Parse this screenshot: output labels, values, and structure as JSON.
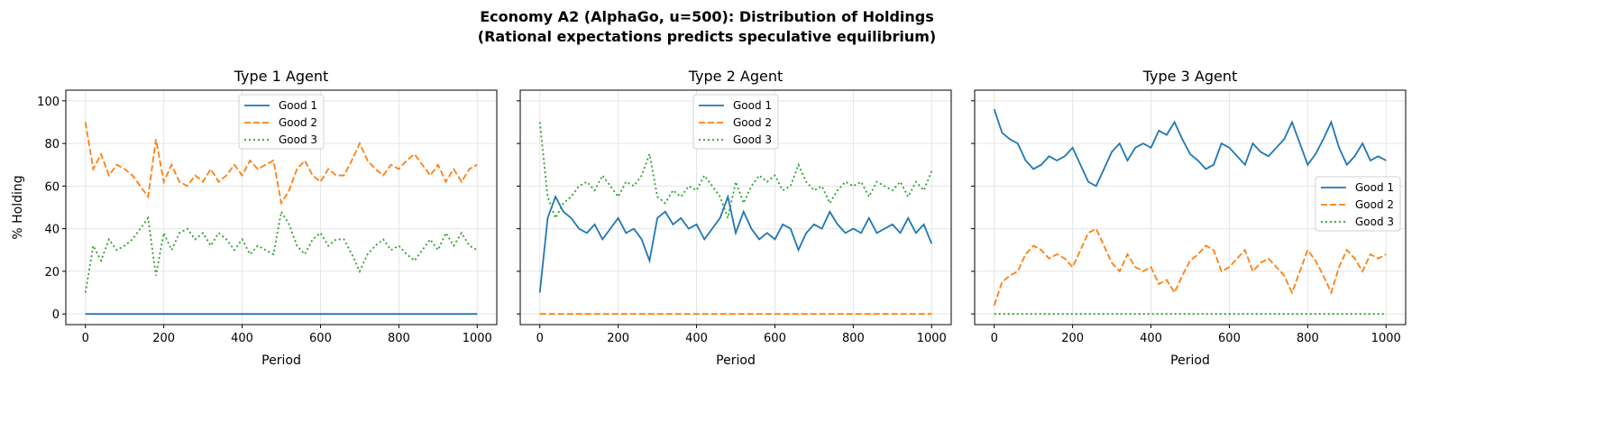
{
  "figure": {
    "title_line1": "Economy A2 (AlphaGo, u=500): Distribution of Holdings",
    "title_line2": "(Rational expectations predicts speculative equilibrium)"
  },
  "colors": {
    "Good 1": "#1f77b4",
    "Good 2": "#ff7f0e",
    "Good 3": "#2ca02c"
  },
  "chart_data": [
    {
      "type": "line",
      "title": "Type 1 Agent",
      "xlabel": "Period",
      "ylabel": "% Holding",
      "xlim": [
        -50,
        1050
      ],
      "ylim": [
        -5,
        105
      ],
      "xticks": [
        0,
        200,
        400,
        600,
        800,
        1000
      ],
      "yticks": [
        0,
        20,
        40,
        60,
        80,
        100
      ],
      "grid": true,
      "legend": "upper center",
      "x": [
        0,
        20,
        40,
        60,
        80,
        100,
        120,
        140,
        160,
        180,
        200,
        220,
        240,
        260,
        280,
        300,
        320,
        340,
        360,
        380,
        400,
        420,
        440,
        460,
        480,
        500,
        520,
        540,
        560,
        580,
        600,
        620,
        640,
        660,
        680,
        700,
        720,
        740,
        760,
        780,
        800,
        820,
        840,
        860,
        880,
        900,
        920,
        940,
        960,
        980,
        1000
      ],
      "series": [
        {
          "name": "Good 1",
          "style": "solid",
          "values": [
            0,
            0,
            0,
            0,
            0,
            0,
            0,
            0,
            0,
            0,
            0,
            0,
            0,
            0,
            0,
            0,
            0,
            0,
            0,
            0,
            0,
            0,
            0,
            0,
            0,
            0,
            0,
            0,
            0,
            0,
            0,
            0,
            0,
            0,
            0,
            0,
            0,
            0,
            0,
            0,
            0,
            0,
            0,
            0,
            0,
            0,
            0,
            0,
            0,
            0,
            0
          ]
        },
        {
          "name": "Good 2",
          "style": "dashed",
          "values": [
            90,
            68,
            75,
            65,
            70,
            68,
            65,
            60,
            55,
            82,
            62,
            70,
            62,
            60,
            65,
            62,
            68,
            62,
            65,
            70,
            65,
            72,
            68,
            70,
            72,
            52,
            58,
            68,
            72,
            65,
            62,
            68,
            65,
            65,
            72,
            80,
            72,
            68,
            65,
            70,
            68,
            72,
            75,
            70,
            65,
            70,
            62,
            68,
            62,
            68,
            70
          ]
        },
        {
          "name": "Good 3",
          "style": "dotted",
          "values": [
            10,
            32,
            25,
            35,
            30,
            32,
            35,
            40,
            45,
            18,
            38,
            30,
            38,
            40,
            35,
            38,
            32,
            38,
            35,
            30,
            35,
            28,
            32,
            30,
            28,
            48,
            42,
            32,
            28,
            35,
            38,
            32,
            35,
            35,
            28,
            20,
            28,
            32,
            35,
            30,
            32,
            28,
            25,
            30,
            35,
            30,
            38,
            32,
            38,
            32,
            30
          ]
        }
      ]
    },
    {
      "type": "line",
      "title": "Type 2 Agent",
      "xlabel": "Period",
      "xlim": [
        -50,
        1050
      ],
      "ylim": [
        -5,
        105
      ],
      "xticks": [
        0,
        200,
        400,
        600,
        800,
        1000
      ],
      "grid": true,
      "legend": "upper center",
      "x": [
        0,
        20,
        40,
        60,
        80,
        100,
        120,
        140,
        160,
        180,
        200,
        220,
        240,
        260,
        280,
        300,
        320,
        340,
        360,
        380,
        400,
        420,
        440,
        460,
        480,
        500,
        520,
        540,
        560,
        580,
        600,
        620,
        640,
        660,
        680,
        700,
        720,
        740,
        760,
        780,
        800,
        820,
        840,
        860,
        880,
        900,
        920,
        940,
        960,
        980,
        1000
      ],
      "series": [
        {
          "name": "Good 1",
          "style": "solid",
          "values": [
            10,
            45,
            55,
            48,
            45,
            40,
            38,
            42,
            35,
            40,
            45,
            38,
            40,
            35,
            25,
            45,
            48,
            42,
            45,
            40,
            42,
            35,
            40,
            45,
            55,
            38,
            48,
            40,
            35,
            38,
            35,
            42,
            40,
            30,
            38,
            42,
            40,
            48,
            42,
            38,
            40,
            38,
            45,
            38,
            40,
            42,
            38,
            45,
            38,
            42,
            33
          ]
        },
        {
          "name": "Good 2",
          "style": "dashed",
          "values": [
            0,
            0,
            0,
            0,
            0,
            0,
            0,
            0,
            0,
            0,
            0,
            0,
            0,
            0,
            0,
            0,
            0,
            0,
            0,
            0,
            0,
            0,
            0,
            0,
            0,
            0,
            0,
            0,
            0,
            0,
            0,
            0,
            0,
            0,
            0,
            0,
            0,
            0,
            0,
            0,
            0,
            0,
            0,
            0,
            0,
            0,
            0,
            0,
            0,
            0,
            0
          ]
        },
        {
          "name": "Good 3",
          "style": "dotted",
          "values": [
            90,
            55,
            45,
            52,
            55,
            60,
            62,
            58,
            65,
            60,
            55,
            62,
            60,
            65,
            75,
            55,
            52,
            58,
            55,
            60,
            58,
            65,
            60,
            55,
            45,
            62,
            52,
            60,
            65,
            62,
            65,
            58,
            60,
            70,
            62,
            58,
            60,
            52,
            58,
            62,
            60,
            62,
            55,
            62,
            60,
            58,
            62,
            55,
            62,
            58,
            67
          ]
        }
      ]
    },
    {
      "type": "line",
      "title": "Type 3 Agent",
      "xlabel": "Period",
      "xlim": [
        -50,
        1050
      ],
      "ylim": [
        -5,
        105
      ],
      "xticks": [
        0,
        200,
        400,
        600,
        800,
        1000
      ],
      "grid": true,
      "legend": "center right",
      "x": [
        0,
        20,
        40,
        60,
        80,
        100,
        120,
        140,
        160,
        180,
        200,
        220,
        240,
        260,
        280,
        300,
        320,
        340,
        360,
        380,
        400,
        420,
        440,
        460,
        480,
        500,
        520,
        540,
        560,
        580,
        600,
        620,
        640,
        660,
        680,
        700,
        720,
        740,
        760,
        780,
        800,
        820,
        840,
        860,
        880,
        900,
        920,
        940,
        960,
        980,
        1000
      ],
      "series": [
        {
          "name": "Good 1",
          "style": "solid",
          "values": [
            96,
            85,
            82,
            80,
            72,
            68,
            70,
            74,
            72,
            74,
            78,
            70,
            62,
            60,
            68,
            76,
            80,
            72,
            78,
            80,
            78,
            86,
            84,
            90,
            82,
            75,
            72,
            68,
            70,
            80,
            78,
            74,
            70,
            80,
            76,
            74,
            78,
            82,
            90,
            80,
            70,
            75,
            82,
            90,
            78,
            70,
            74,
            80,
            72,
            74,
            72
          ]
        },
        {
          "name": "Good 2",
          "style": "dashed",
          "values": [
            4,
            15,
            18,
            20,
            28,
            32,
            30,
            26,
            28,
            26,
            22,
            30,
            38,
            40,
            32,
            24,
            20,
            28,
            22,
            20,
            22,
            14,
            16,
            10,
            18,
            25,
            28,
            32,
            30,
            20,
            22,
            26,
            30,
            20,
            24,
            26,
            22,
            18,
            10,
            20,
            30,
            25,
            18,
            10,
            22,
            30,
            26,
            20,
            28,
            26,
            28
          ]
        },
        {
          "name": "Good 3",
          "style": "dotted",
          "values": [
            0,
            0,
            0,
            0,
            0,
            0,
            0,
            0,
            0,
            0,
            0,
            0,
            0,
            0,
            0,
            0,
            0,
            0,
            0,
            0,
            0,
            0,
            0,
            0,
            0,
            0,
            0,
            0,
            0,
            0,
            0,
            0,
            0,
            0,
            0,
            0,
            0,
            0,
            0,
            0,
            0,
            0,
            0,
            0,
            0,
            0,
            0,
            0,
            0,
            0,
            0
          ]
        }
      ]
    }
  ]
}
